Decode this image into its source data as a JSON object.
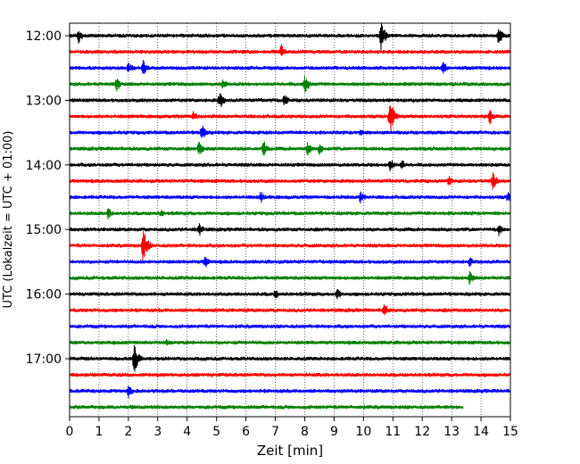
{
  "chart_data": {
    "type": "line",
    "subtype": "helicorder",
    "xlabel": "Zeit  [min]",
    "ylabel": "UTC (Lokalzeit = UTC + 01:00)",
    "xlim": [
      0,
      15
    ],
    "x_ticks": [
      "0",
      "1",
      "2",
      "3",
      "4",
      "5",
      "6",
      "7",
      "8",
      "9",
      "10",
      "11",
      "12",
      "13",
      "14",
      "15"
    ],
    "y_ticks": [
      "12:00",
      "13:00",
      "14:00",
      "15:00",
      "16:00",
      "17:00"
    ],
    "grid": "vertical dotted lines at each minute",
    "trace_interval_minutes": 15,
    "trace_colors": [
      "#000000",
      "#ff0000",
      "#0000ff",
      "#008000"
    ],
    "traces": [
      {
        "start": "12:00",
        "color": "#000000",
        "end_minute": 15,
        "events": [
          [
            0.3,
            10
          ],
          [
            10.6,
            18
          ],
          [
            14.6,
            11
          ]
        ]
      },
      {
        "start": "12:15",
        "color": "#ff0000",
        "end_minute": 15,
        "events": [
          [
            7.2,
            10
          ]
        ]
      },
      {
        "start": "12:30",
        "color": "#0000ff",
        "end_minute": 15,
        "events": [
          [
            2.0,
            9
          ],
          [
            2.5,
            12
          ],
          [
            12.7,
            9
          ]
        ]
      },
      {
        "start": "12:45",
        "color": "#008000",
        "end_minute": 15,
        "events": [
          [
            1.6,
            9
          ],
          [
            5.2,
            8
          ],
          [
            8.0,
            13
          ]
        ]
      },
      {
        "start": "13:00",
        "color": "#000000",
        "end_minute": 15,
        "events": [
          [
            5.1,
            12
          ],
          [
            7.3,
            9
          ]
        ]
      },
      {
        "start": "13:15",
        "color": "#ff0000",
        "end_minute": 15,
        "events": [
          [
            4.2,
            7
          ],
          [
            10.9,
            22
          ],
          [
            14.3,
            10
          ]
        ]
      },
      {
        "start": "13:30",
        "color": "#0000ff",
        "end_minute": 15,
        "events": [
          [
            4.5,
            11
          ],
          [
            9.9,
            6
          ]
        ]
      },
      {
        "start": "13:45",
        "color": "#008000",
        "end_minute": 15,
        "events": [
          [
            4.4,
            10
          ],
          [
            6.6,
            11
          ],
          [
            8.1,
            9
          ],
          [
            8.5,
            8
          ]
        ]
      },
      {
        "start": "14:00",
        "color": "#000000",
        "end_minute": 15,
        "events": [
          [
            10.9,
            9
          ],
          [
            11.3,
            7
          ]
        ]
      },
      {
        "start": "14:15",
        "color": "#ff0000",
        "end_minute": 15,
        "events": [
          [
            12.9,
            7
          ],
          [
            14.4,
            11
          ]
        ]
      },
      {
        "start": "14:30",
        "color": "#0000ff",
        "end_minute": 15,
        "events": [
          [
            6.5,
            8
          ],
          [
            9.9,
            9
          ],
          [
            14.9,
            8
          ]
        ]
      },
      {
        "start": "14:45",
        "color": "#008000",
        "end_minute": 15,
        "events": [
          [
            1.3,
            8
          ],
          [
            3.1,
            6
          ]
        ]
      },
      {
        "start": "15:00",
        "color": "#000000",
        "end_minute": 15,
        "events": [
          [
            4.4,
            9
          ],
          [
            14.6,
            8
          ]
        ]
      },
      {
        "start": "15:15",
        "color": "#ff0000",
        "end_minute": 15,
        "events": [
          [
            2.5,
            22
          ]
        ]
      },
      {
        "start": "15:30",
        "color": "#0000ff",
        "end_minute": 15,
        "events": [
          [
            4.6,
            9
          ],
          [
            13.6,
            7
          ]
        ]
      },
      {
        "start": "15:45",
        "color": "#008000",
        "end_minute": 15,
        "events": [
          [
            13.6,
            9
          ]
        ]
      },
      {
        "start": "16:00",
        "color": "#000000",
        "end_minute": 15,
        "events": [
          [
            7.0,
            7
          ],
          [
            9.1,
            8
          ]
        ]
      },
      {
        "start": "16:15",
        "color": "#ff0000",
        "end_minute": 15,
        "events": [
          [
            10.7,
            10
          ]
        ]
      },
      {
        "start": "16:30",
        "color": "#0000ff",
        "end_minute": 15,
        "events": []
      },
      {
        "start": "16:45",
        "color": "#008000",
        "end_minute": 15,
        "events": [
          [
            3.3,
            6
          ]
        ]
      },
      {
        "start": "17:00",
        "color": "#000000",
        "end_minute": 15,
        "events": [
          [
            2.2,
            18
          ]
        ]
      },
      {
        "start": "17:15",
        "color": "#ff0000",
        "end_minute": 15,
        "events": []
      },
      {
        "start": "17:30",
        "color": "#0000ff",
        "end_minute": 15,
        "events": [
          [
            2.0,
            9
          ]
        ]
      },
      {
        "start": "17:45",
        "color": "#008000",
        "end_minute": 13.4,
        "events": []
      }
    ]
  }
}
